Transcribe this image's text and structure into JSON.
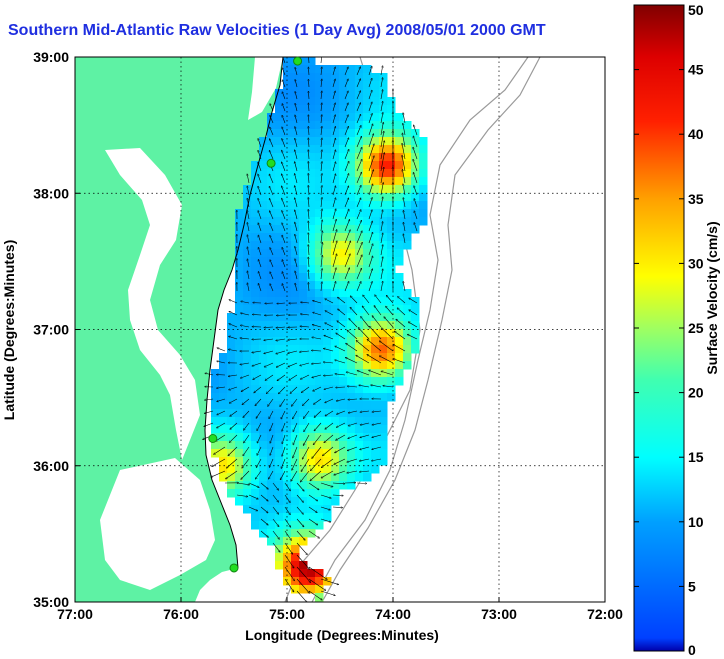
{
  "title": "Southern Mid-Atlantic Raw Velocities (1 Day Avg) 2008/05/01 2000 GMT",
  "colors": {
    "land": "#5ef2a4",
    "title": "#1f2fe0",
    "coastline": "#000000",
    "bathymetry": "#9a9a9a",
    "station": "#22dd22",
    "grid": "#000000"
  },
  "chart_data": {
    "type": "heatmap",
    "title": "Southern Mid-Atlantic Raw Velocities (1 Day Avg) 2008/05/01 2000 GMT",
    "xlabel": "Longitude (Degrees:Minutes)",
    "ylabel": "Latitude (Degrees:Minutes)",
    "x_range_deg_east": [
      -77,
      -72
    ],
    "y_range_deg_north": [
      35,
      39
    ],
    "x_tick_labels": [
      "77:00",
      "76:00",
      "75:00",
      "74:00",
      "73:00",
      "72:00"
    ],
    "y_tick_labels": [
      "35:00",
      "36:00",
      "37:00",
      "38:00",
      "39:00"
    ],
    "grid": true,
    "colorbar": {
      "label": "Surface Velocity (cm/s)",
      "range": [
        0,
        50
      ],
      "tick_labels": [
        "0",
        "5",
        "10",
        "15",
        "20",
        "25",
        "30",
        "35",
        "40",
        "45",
        "50"
      ],
      "colormap": "jet",
      "placement": "right"
    },
    "high_speed_zones": [
      {
        "lon": -74.05,
        "lat": 38.2,
        "speed_cm_s": 44
      },
      {
        "lon": -74.1,
        "lat": 36.85,
        "speed_cm_s": 40
      },
      {
        "lon": -74.7,
        "lat": 36.05,
        "speed_cm_s": 33
      },
      {
        "lon": -75.6,
        "lat": 36.0,
        "speed_cm_s": 30
      },
      {
        "lon": -74.8,
        "lat": 35.25,
        "speed_cm_s": 47
      },
      {
        "lon": -74.5,
        "lat": 37.55,
        "speed_cm_s": 30
      }
    ],
    "stations": [
      {
        "lon": -74.9,
        "lat": 38.97
      },
      {
        "lon": -75.15,
        "lat": 38.22
      },
      {
        "lon": -75.7,
        "lat": 36.2
      },
      {
        "lon": -75.5,
        "lat": 35.25
      }
    ]
  }
}
